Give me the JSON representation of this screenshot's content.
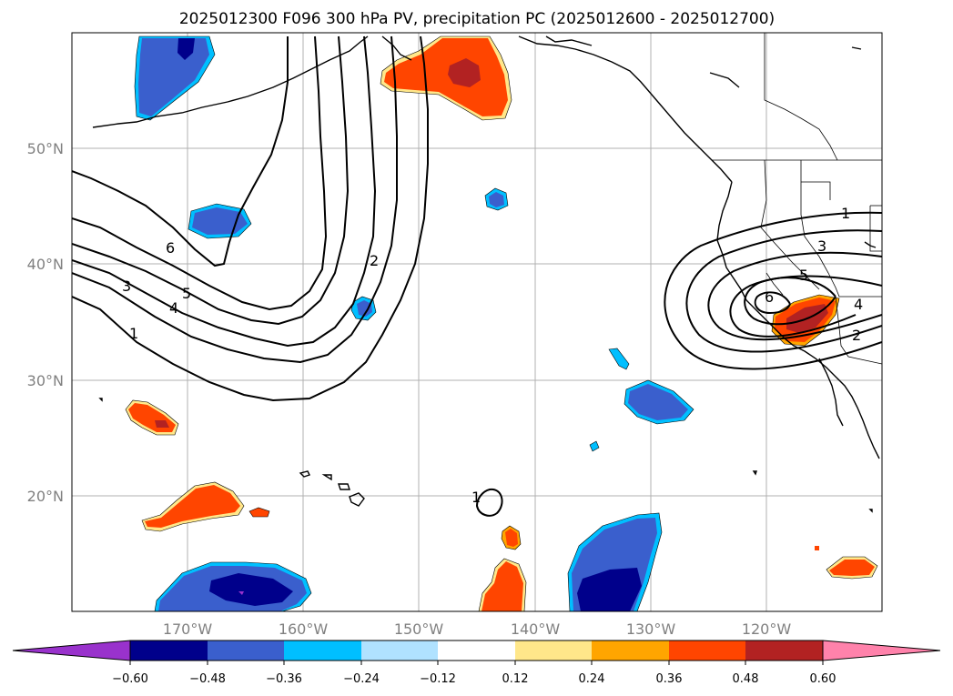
{
  "title": "2025012300 F096 300 hPa PV, precipitation PC (2025012600 - 2025012700)",
  "map": {
    "lon_range": [
      -180,
      -110
    ],
    "lat_range": [
      10,
      60
    ],
    "lat_ticks": [
      {
        "value": 50,
        "label": "50°N"
      },
      {
        "value": 40,
        "label": "40°N"
      },
      {
        "value": 30,
        "label": "30°N"
      },
      {
        "value": 20,
        "label": "20°N"
      }
    ],
    "lon_ticks": [
      {
        "value": -170,
        "label": "170°W"
      },
      {
        "value": -160,
        "label": "160°W"
      },
      {
        "value": -150,
        "label": "150°W"
      },
      {
        "value": -140,
        "label": "140°W"
      },
      {
        "value": -130,
        "label": "130°W"
      },
      {
        "value": -120,
        "label": "120°W"
      }
    ],
    "gridlines": true
  },
  "pv_contours": {
    "levels": [
      "1",
      "2",
      "3",
      "4",
      "5",
      "6"
    ],
    "label_texts": [
      "6",
      "5",
      "4",
      "3",
      "1",
      "2",
      "1",
      "3",
      "5",
      "6",
      "4",
      "2",
      "1"
    ]
  },
  "colorbar": {
    "tick_labels": [
      "−0.60",
      "−0.48",
      "−0.36",
      "−0.24",
      "−0.12",
      "0.12",
      "0.24",
      "0.36",
      "0.48",
      "0.60"
    ],
    "colors": [
      "#9932CC",
      "#00008B",
      "#3A5FCD",
      "#00BFFF",
      "#B0E2FF",
      "#FFFFFF",
      "#FFE78A",
      "#FFA500",
      "#FF4500",
      "#B22222",
      "#FF82AB"
    ],
    "extend": "both"
  }
}
